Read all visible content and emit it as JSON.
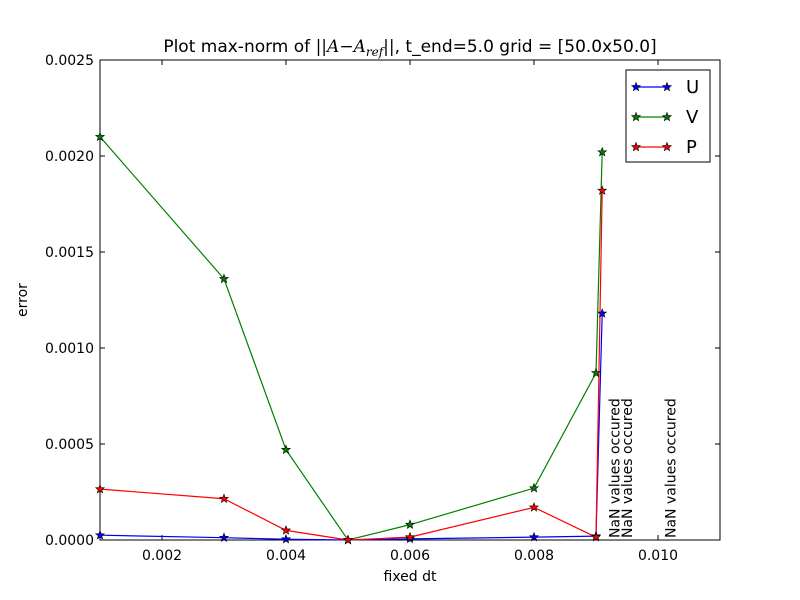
{
  "chart_data": {
    "type": "line",
    "title": "Plot max-norm of ||A−A_ref||, t_end=5.0  grid = [50.0x50.0]",
    "title_parts": {
      "prefix": "Plot max-norm of ",
      "math_A": "A",
      "math_minus": "−",
      "math_ref_base": "A",
      "math_ref_sub": "ref",
      "suffix": ", t_end=5.0  grid = [50.0x50.0]"
    },
    "xlabel": "fixed dt",
    "ylabel": "error",
    "xlim": [
      0.001,
      0.011
    ],
    "ylim": [
      0.0,
      0.0025
    ],
    "xticks": [
      0.002,
      0.004,
      0.006,
      0.008,
      0.01
    ],
    "xtick_labels": [
      "0.002",
      "0.004",
      "0.006",
      "0.008",
      "0.010"
    ],
    "yticks": [
      0.0,
      0.0005,
      0.001,
      0.0015,
      0.002,
      0.0025
    ],
    "ytick_labels": [
      "0.0000",
      "0.0005",
      "0.0010",
      "0.0015",
      "0.0020",
      "0.0025"
    ],
    "grid": false,
    "legend_position": "top-right",
    "marker": "star",
    "series": [
      {
        "name": "U",
        "color": "#0000ff",
        "x": [
          0.001,
          0.003,
          0.004,
          0.005,
          0.006,
          0.008,
          0.009,
          0.0091
        ],
        "y": [
          2.5e-05,
          1.2e-05,
          4e-06,
          0.0,
          6e-06,
          1.5e-05,
          2e-05,
          0.00118
        ]
      },
      {
        "name": "V",
        "color": "#008000",
        "x": [
          0.001,
          0.003,
          0.004,
          0.005,
          0.006,
          0.008,
          0.009,
          0.0091
        ],
        "y": [
          0.0021,
          0.00136,
          0.00047,
          0.0,
          8e-05,
          0.00027,
          0.00087,
          0.00202
        ]
      },
      {
        "name": "P",
        "color": "#ff0000",
        "x": [
          0.001,
          0.003,
          0.004,
          0.005,
          0.006,
          0.008,
          0.009,
          0.0091
        ],
        "y": [
          0.000265,
          0.000215,
          5e-05,
          0.0,
          1.5e-05,
          0.00017,
          1.5e-05,
          0.00182
        ]
      }
    ],
    "annotations": [
      {
        "text": "NaN values occured",
        "x": 0.0093,
        "y": 0.0
      },
      {
        "text": "NaN values occured",
        "x": 0.0095,
        "y": 0.0
      },
      {
        "text": "NaN values occured",
        "x": 0.0102,
        "y": 0.0
      }
    ]
  }
}
